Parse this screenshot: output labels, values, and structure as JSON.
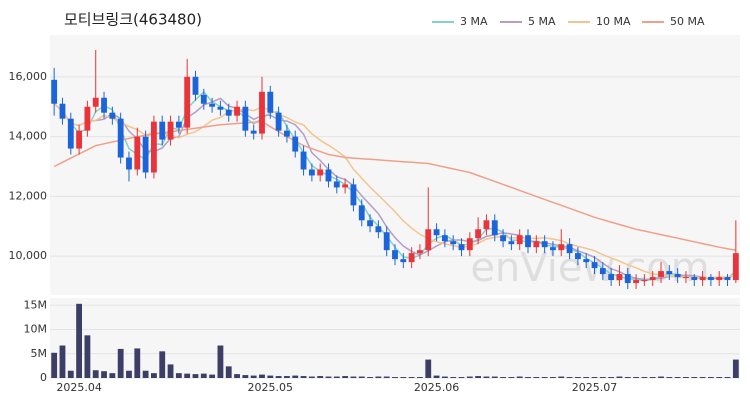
{
  "chart_data": {
    "type": "candlestick",
    "title": "모티브링크(463480)",
    "watermark": "enView.com",
    "categories": [
      null,
      null,
      null,
      "2025.04",
      null,
      null,
      null,
      null,
      null,
      null,
      null,
      null,
      null,
      null,
      null,
      null,
      null,
      null,
      null,
      null,
      null,
      null,
      null,
      null,
      null,
      null,
      "2025.05",
      null,
      null,
      null,
      null,
      null,
      null,
      null,
      null,
      null,
      null,
      null,
      null,
      null,
      null,
      null,
      null,
      null,
      null,
      null,
      "2025.06",
      null,
      null,
      null,
      null,
      null,
      null,
      null,
      null,
      null,
      null,
      null,
      null,
      null,
      null,
      null,
      null,
      null,
      null,
      "2025.07",
      null,
      null,
      null,
      null,
      null,
      null,
      null,
      null,
      null,
      null,
      null,
      null,
      null,
      null,
      null,
      null,
      null
    ],
    "open": [
      15900,
      15100,
      14600,
      13600,
      14200,
      15000,
      15300,
      14800,
      14600,
      13300,
      12900,
      14000,
      12800,
      14500,
      13900,
      14500,
      14300,
      16000,
      15400,
      15100,
      15000,
      14900,
      14700,
      15000,
      14200,
      14100,
      15500,
      14800,
      14200,
      14000,
      13500,
      12900,
      12700,
      12900,
      12500,
      12300,
      12400,
      11700,
      11200,
      11000,
      10800,
      10200,
      9900,
      9800,
      10100,
      10200,
      10900,
      10700,
      10500,
      10400,
      10200,
      10600,
      10900,
      11200,
      10700,
      10500,
      10400,
      10700,
      10300,
      10500,
      10300,
      10200,
      10400,
      10100,
      9900,
      9800,
      9600,
      9400,
      9200,
      9400,
      9100,
      9200,
      9200,
      9300,
      9500,
      9400,
      9300,
      9300,
      9200,
      9300,
      9200,
      9300,
      9200
    ],
    "high": [
      16300,
      15300,
      14800,
      14400,
      15200,
      16900,
      15500,
      15000,
      14800,
      13500,
      14300,
      14200,
      14700,
      14700,
      14700,
      14700,
      16600,
      16200,
      15600,
      15300,
      15200,
      15100,
      15200,
      15200,
      14400,
      16000,
      15700,
      15000,
      14400,
      14200,
      13700,
      13100,
      13100,
      13100,
      12700,
      12600,
      12600,
      11900,
      11400,
      11200,
      11000,
      10400,
      10100,
      10300,
      10400,
      12300,
      11100,
      10900,
      10700,
      10600,
      10800,
      11300,
      11400,
      11400,
      10900,
      10700,
      10900,
      10900,
      10700,
      10700,
      10500,
      10900,
      10600,
      10300,
      10100,
      10000,
      9800,
      9600,
      9700,
      9600,
      9400,
      9400,
      9500,
      9800,
      9700,
      9600,
      9500,
      9400,
      9500,
      9400,
      9500,
      9400,
      11200
    ],
    "low": [
      14700,
      14400,
      13400,
      13400,
      14000,
      14800,
      14600,
      14400,
      13100,
      12500,
      12700,
      12600,
      12600,
      13700,
      13700,
      14100,
      14100,
      15200,
      14900,
      14800,
      14700,
      14500,
      14500,
      14000,
      13900,
      13900,
      14600,
      14000,
      13800,
      13300,
      12700,
      12500,
      12500,
      12300,
      12100,
      12100,
      11500,
      11000,
      10800,
      10600,
      10000,
      9700,
      9600,
      9600,
      9900,
      10000,
      10500,
      10300,
      10200,
      10000,
      10000,
      10400,
      10700,
      10500,
      10300,
      10200,
      10200,
      10100,
      10100,
      10100,
      10000,
      10000,
      9900,
      9700,
      9600,
      9400,
      9200,
      9000,
      9000,
      8900,
      8900,
      9000,
      9000,
      9100,
      9200,
      9100,
      9100,
      9000,
      9000,
      9000,
      9000,
      9000,
      9100
    ],
    "close": [
      15100,
      14600,
      13600,
      14200,
      15000,
      15300,
      14800,
      14600,
      13300,
      12900,
      14000,
      12800,
      14500,
      13900,
      14500,
      14300,
      16000,
      15400,
      15100,
      15000,
      14900,
      14700,
      15000,
      14200,
      14100,
      15500,
      14800,
      14200,
      14000,
      13500,
      12900,
      12700,
      12900,
      12500,
      12300,
      12400,
      11700,
      11200,
      11000,
      10800,
      10200,
      9900,
      9800,
      10100,
      10200,
      10900,
      10700,
      10500,
      10400,
      10200,
      10600,
      10900,
      11200,
      10700,
      10500,
      10400,
      10700,
      10300,
      10500,
      10300,
      10200,
      10400,
      10100,
      9900,
      9800,
      9600,
      9400,
      9200,
      9400,
      9100,
      9200,
      9200,
      9300,
      9500,
      9400,
      9300,
      9300,
      9200,
      9300,
      9200,
      9300,
      9200,
      10100
    ],
    "up_color": "#e8343a",
    "down_color": "#1b64da",
    "ylim": [
      8700,
      17400
    ],
    "yticks": [
      {
        "value": 10000,
        "label": "10,000"
      },
      {
        "value": 12000,
        "label": "12,000"
      },
      {
        "value": 14000,
        "label": "14,000"
      },
      {
        "value": 16000,
        "label": "16,000"
      }
    ],
    "grid": true,
    "legend": "top-right",
    "series": [
      {
        "name": "3 MA",
        "color": "#7fd3c9",
        "values": [
          15100,
          14850,
          14433,
          14133,
          14267,
          14833,
          15033,
          14900,
          14233,
          13600,
          13400,
          13233,
          13767,
          13733,
          14300,
          14233,
          14933,
          15233,
          15500,
          15167,
          15000,
          14867,
          14867,
          14633,
          14433,
          14600,
          14800,
          14833,
          14333,
          13900,
          13467,
          13033,
          12833,
          12700,
          12567,
          12400,
          12133,
          11767,
          11300,
          11000,
          10667,
          10300,
          9967,
          9933,
          10033,
          10400,
          10600,
          10700,
          10533,
          10367,
          10400,
          10567,
          10900,
          10933,
          10800,
          10533,
          10533,
          10467,
          10500,
          10367,
          10333,
          10300,
          10233,
          10133,
          9933,
          9767,
          9600,
          9400,
          9333,
          9233,
          9233,
          9167,
          9233,
          9333,
          9400,
          9400,
          9333,
          9267,
          9267,
          9233,
          9267,
          9233,
          9533
        ]
      },
      {
        "name": "5 MA",
        "color": "#b39fc9",
        "values": [
          15100,
          14850,
          14433,
          14375,
          14500,
          14540,
          14580,
          14780,
          14600,
          14180,
          13920,
          13520,
          13500,
          13620,
          13940,
          14000,
          14640,
          14820,
          15060,
          15160,
          15280,
          15020,
          14940,
          14760,
          14580,
          14700,
          14720,
          14560,
          14520,
          14400,
          14080,
          13460,
          13200,
          12900,
          12660,
          12560,
          12360,
          12020,
          11720,
          11420,
          10980,
          10620,
          10340,
          10160,
          10040,
          10180,
          10340,
          10480,
          10540,
          10540,
          10480,
          10520,
          10660,
          10720,
          10780,
          10740,
          10700,
          10520,
          10480,
          10440,
          10400,
          10340,
          10300,
          10180,
          10080,
          9960,
          9760,
          9580,
          9480,
          9340,
          9260,
          9220,
          9240,
          9260,
          9320,
          9340,
          9360,
          9340,
          9300,
          9260,
          9260,
          9240,
          9420
        ]
      },
      {
        "name": "10 MA",
        "color": "#f3c48f",
        "values": [
          15100,
          14850,
          14433,
          14375,
          14500,
          14540,
          14715,
          14607,
          14488,
          14340,
          14230,
          14050,
          14140,
          14110,
          14060,
          13960,
          14080,
          14160,
          14340,
          14550,
          14640,
          14830,
          14880,
          14910,
          14870,
          14990,
          14870,
          14750,
          14640,
          14490,
          14390,
          14090,
          13880,
          13710,
          13530,
          13320,
          12910,
          12610,
          12310,
          12040,
          11770,
          11490,
          11180,
          10940,
          10730,
          10580,
          10480,
          10410,
          10350,
          10290,
          10330,
          10430,
          10570,
          10630,
          10660,
          10610,
          10610,
          10590,
          10600,
          10610,
          10570,
          10520,
          10410,
          10330,
          10260,
          10180,
          10050,
          9940,
          9830,
          9710,
          9610,
          9490,
          9410,
          9370,
          9330,
          9300,
          9290,
          9290,
          9280,
          9290,
          9300,
          9300,
          9380
        ]
      },
      {
        "name": "50 MA",
        "color": "#f0a08a",
        "values": [
          13000,
          13140,
          13280,
          13420,
          13560,
          13700,
          13760,
          13820,
          13880,
          13940,
          14000,
          14040,
          14080,
          14120,
          14160,
          14200,
          14240,
          14280,
          14320,
          14360,
          14400,
          14420,
          14440,
          14460,
          14480,
          14500,
          14330,
          14170,
          14000,
          13850,
          13700,
          13600,
          13500,
          13400,
          13350,
          13300,
          13280,
          13260,
          13240,
          13220,
          13200,
          13180,
          13160,
          13140,
          13120,
          13100,
          13040,
          12980,
          12920,
          12860,
          12800,
          12700,
          12600,
          12500,
          12400,
          12300,
          12200,
          12100,
          12000,
          11900,
          11800,
          11700,
          11600,
          11500,
          11400,
          11300,
          11220,
          11140,
          11060,
          10980,
          10900,
          10840,
          10780,
          10720,
          10660,
          10600,
          10540,
          10480,
          10420,
          10360,
          10300,
          10250,
          10200
        ]
      }
    ],
    "volume": {
      "color": "#3c3e66",
      "ylim": [
        0,
        16500000
      ],
      "yticks": [
        0,
        {
          "value": 5000000,
          "label": "5M"
        },
        {
          "value": 10000000,
          "label": "10M"
        },
        {
          "value": 15000000,
          "label": "15M"
        }
      ],
      "values": [
        5200000,
        6700000,
        1500000,
        15300000,
        8800000,
        1600000,
        1400000,
        1000000,
        6000000,
        1500000,
        6100000,
        1500000,
        1000000,
        5500000,
        2800000,
        1000000,
        900000,
        800000,
        900000,
        700000,
        6700000,
        2400000,
        800000,
        600000,
        500000,
        700000,
        500000,
        400000,
        400000,
        500000,
        400000,
        300000,
        400000,
        300000,
        300000,
        400000,
        300000,
        300000,
        200000,
        300000,
        300000,
        200000,
        200000,
        200000,
        200000,
        3800000,
        500000,
        300000,
        200000,
        200000,
        300000,
        400000,
        300000,
        300000,
        200000,
        200000,
        300000,
        200000,
        200000,
        200000,
        200000,
        300000,
        200000,
        200000,
        200000,
        200000,
        200000,
        200000,
        300000,
        200000,
        200000,
        200000,
        200000,
        300000,
        200000,
        200000,
        200000,
        200000,
        200000,
        200000,
        200000,
        200000,
        3800000
      ]
    }
  }
}
